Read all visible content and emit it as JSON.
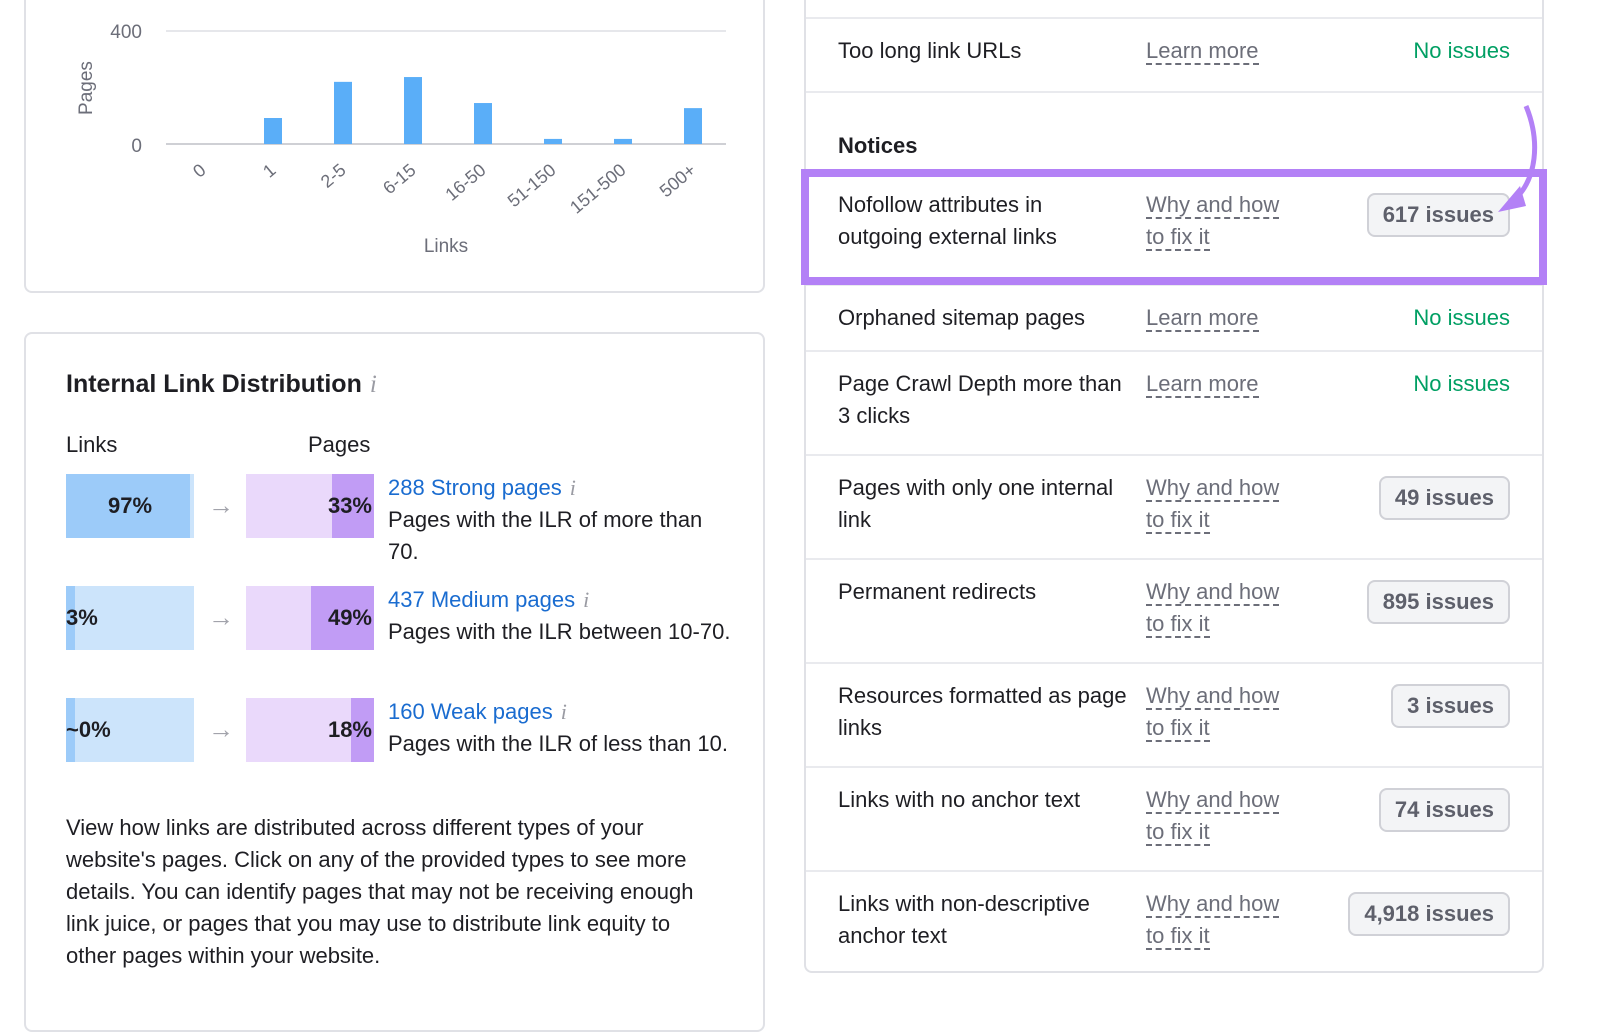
{
  "chart_data": {
    "type": "bar",
    "categories": [
      "0",
      "1",
      "2-5",
      "6-15",
      "16-50",
      "51-150",
      "151-500",
      "500+"
    ],
    "values": [
      0,
      92,
      220,
      237,
      145,
      18,
      18,
      127
    ],
    "xlabel": "Links",
    "ylabel": "Pages",
    "ylim": [
      0,
      400
    ],
    "yticks": [
      "0",
      "400"
    ],
    "grid": true,
    "bar_color": "#5aaef8"
  },
  "ild": {
    "title": "Internal Link Distribution",
    "info_icon": "i",
    "links_header": "Links",
    "pages_header": "Pages",
    "arrow": "→",
    "rows": [
      {
        "links_pct_label": "97%",
        "links_fill": 97,
        "pages_pct_label": "33%",
        "pages_fill": 33,
        "link": "288 Strong pages",
        "desc": "Pages with the ILR of more than 70."
      },
      {
        "links_pct_label": "3%",
        "links_fill": 3,
        "pages_pct_label": "49%",
        "pages_fill": 49,
        "link": "437 Medium pages",
        "desc": "Pages with the ILR between 10-70."
      },
      {
        "links_pct_label": "~0%",
        "links_fill": 0,
        "pages_pct_label": "18%",
        "pages_fill": 18,
        "link": "160 Weak pages",
        "desc": "Pages with the ILR of less than 10."
      }
    ],
    "description": "View how links are distributed across different types of your website's pages. Click on any of the provided types to see more details. You can identify pages that may not be receiving enough link juice, or pages that you may use to distribute link equity to other pages within your website."
  },
  "issues": {
    "top_row": {
      "name": "Too long link URLs",
      "link": "Learn more",
      "status": "No issues"
    },
    "notices_heading": "Notices",
    "rows": [
      {
        "name": "Nofollow attributes in outgoing external links",
        "link": "Why and how to fix it",
        "badge": "617 issues",
        "highlighted": true
      },
      {
        "name": "Orphaned sitemap pages",
        "link": "Learn more",
        "status": "No issues"
      },
      {
        "name": "Page Crawl Depth more than 3 clicks",
        "link": "Learn more",
        "status": "No issues"
      },
      {
        "name": "Pages with only one internal link",
        "link": "Why and how to fix it",
        "badge": "49 issues"
      },
      {
        "name": "Permanent redirects",
        "link": "Why and how to fix it",
        "badge": "895 issues"
      },
      {
        "name": "Resources formatted as page links",
        "link": "Why and how to fix it",
        "badge": "3 issues"
      },
      {
        "name": "Links with no anchor text",
        "link": "Why and how to fix it",
        "badge": "74 issues"
      },
      {
        "name": "Links with non-descriptive anchor text",
        "link": "Why and how to fix it",
        "badge": "4,918 issues"
      }
    ],
    "highlight_color": "#b381f6",
    "status_ok_color": "#009f63"
  }
}
